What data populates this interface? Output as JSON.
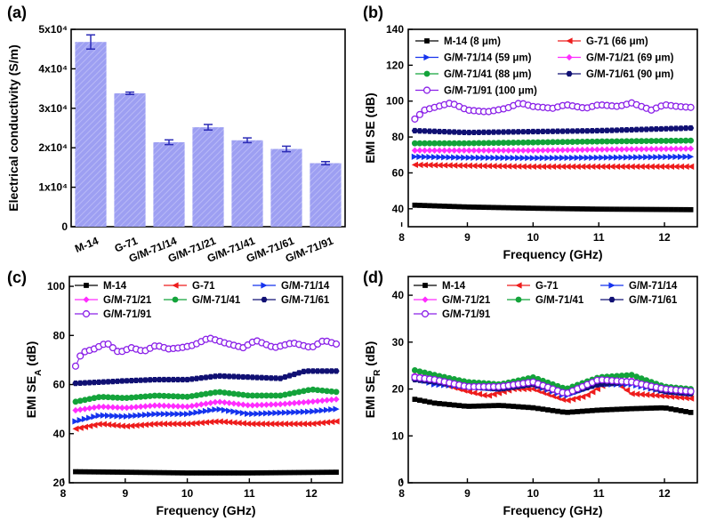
{
  "chart_data": [
    {
      "panel": "(a)",
      "type": "bar",
      "ylabel": "Electrical conductivity (S/m)",
      "categories": [
        "M-14",
        "G-71",
        "G/M-71/14",
        "G/M-71/21",
        "G/M-71/41",
        "G/M-71/61",
        "G/M-71/91"
      ],
      "values": [
        46800,
        33800,
        21400,
        25200,
        21900,
        19700,
        16100
      ],
      "errors": [
        1800,
        300,
        600,
        700,
        600,
        700,
        400
      ],
      "ylim": [
        0,
        50000
      ],
      "yticks": [
        0,
        10000,
        20000,
        30000,
        40000,
        50000
      ],
      "ytick_labels": [
        "0",
        "1x10⁴",
        "2x10⁴",
        "3x10⁴",
        "4x10⁴",
        "5x10⁴"
      ],
      "colors": {
        "bar": "#9d9ff2",
        "hatch": "#b8b9f6",
        "error": "#2b2bb6"
      }
    },
    {
      "panel": "(b)",
      "type": "line",
      "xlabel": "Frequency (GHz)",
      "ylabel": "EMI SE (dB)",
      "xlim": [
        8.1,
        12.5
      ],
      "ylim": [
        30,
        140
      ],
      "xticks": [
        8,
        9,
        10,
        11,
        12
      ],
      "yticks": [
        40,
        60,
        80,
        100,
        120,
        140
      ],
      "legend_columns": 2,
      "series": [
        {
          "name": "M-14 (8 μm)",
          "marker": "square",
          "color": "#000000",
          "points": [
            [
              8.2,
              42
            ],
            [
              9,
              41
            ],
            [
              10,
              40.3
            ],
            [
              11,
              39.8
            ],
            [
              12.4,
              39.5
            ]
          ]
        },
        {
          "name": "G-71 (66 μm)",
          "marker": "triangle-left",
          "color": "#ee1c1c",
          "points": [
            [
              8.2,
              64.5
            ],
            [
              9,
              64
            ],
            [
              10,
              63.5
            ],
            [
              11,
              63.5
            ],
            [
              12.4,
              63.5
            ]
          ]
        },
        {
          "name": "G/M-71/14 (59 μm)",
          "marker": "triangle-right",
          "color": "#1533ee",
          "points": [
            [
              8.2,
              69
            ],
            [
              9,
              68.5
            ],
            [
              10,
              68.3
            ],
            [
              11,
              68.5
            ],
            [
              12.4,
              69
            ]
          ]
        },
        {
          "name": "G/M-71/21 (69 μm)",
          "marker": "diamond",
          "color": "#ff2cff",
          "points": [
            [
              8.2,
              72.5
            ],
            [
              9,
              72.5
            ],
            [
              10,
              72.5
            ],
            [
              11,
              73
            ],
            [
              12.4,
              73.5
            ]
          ]
        },
        {
          "name": "G/M-71/41 (88 μm)",
          "marker": "circle",
          "color": "#13a33a",
          "points": [
            [
              8.2,
              76.5
            ],
            [
              9,
              76.5
            ],
            [
              10,
              77
            ],
            [
              11,
              77.5
            ],
            [
              12.4,
              78
            ]
          ]
        },
        {
          "name": "G/M-71/61 (90 μm)",
          "marker": "hexagon",
          "color": "#101073",
          "points": [
            [
              8.2,
              83.5
            ],
            [
              9,
              82.5
            ],
            [
              10,
              83
            ],
            [
              11,
              83.5
            ],
            [
              12.4,
              85
            ]
          ]
        },
        {
          "name": "G/M-71/91 (100 μm)",
          "marker": "circle-open",
          "color": "#8a20e8",
          "points": [
            [
              8.2,
              90
            ],
            [
              8.35,
              95
            ],
            [
              8.5,
              96.5
            ],
            [
              8.75,
              99
            ],
            [
              9,
              95
            ],
            [
              9.3,
              94
            ],
            [
              9.6,
              96
            ],
            [
              9.8,
              99
            ],
            [
              10.0,
              97
            ],
            [
              10.3,
              96
            ],
            [
              10.5,
              98
            ],
            [
              10.8,
              96
            ],
            [
              11.0,
              98
            ],
            [
              11.3,
              97
            ],
            [
              11.5,
              99
            ],
            [
              11.8,
              95
            ],
            [
              12.0,
              98
            ],
            [
              12.2,
              97
            ],
            [
              12.4,
              96.5
            ]
          ]
        }
      ]
    },
    {
      "panel": "(c)",
      "type": "line",
      "xlabel": "Frequency (GHz)",
      "ylabel_main": "EMI SE",
      "ylabel_sub": "A",
      "ylabel_unit": " (dB)",
      "xlim": [
        8.1,
        12.5
      ],
      "ylim": [
        20,
        104
      ],
      "xticks": [
        8,
        9,
        10,
        11,
        12
      ],
      "yticks": [
        20,
        40,
        60,
        80,
        100
      ],
      "legend_columns": 3,
      "series": [
        {
          "name": "M-14",
          "marker": "square",
          "color": "#000000",
          "points": [
            [
              8.2,
              24.5
            ],
            [
              9,
              24.3
            ],
            [
              10,
              24
            ],
            [
              11,
              24
            ],
            [
              12.4,
              24.3
            ]
          ]
        },
        {
          "name": "G-71",
          "marker": "triangle-left",
          "color": "#ee1c1c",
          "points": [
            [
              8.2,
              42
            ],
            [
              8.6,
              44
            ],
            [
              9,
              43
            ],
            [
              9.5,
              44
            ],
            [
              10,
              44
            ],
            [
              10.5,
              45
            ],
            [
              11,
              44
            ],
            [
              11.5,
              44
            ],
            [
              12,
              44
            ],
            [
              12.4,
              45
            ]
          ]
        },
        {
          "name": "G/M-71/14",
          "marker": "triangle-right",
          "color": "#1533ee",
          "points": [
            [
              8.2,
              45
            ],
            [
              8.6,
              47.5
            ],
            [
              9,
              47
            ],
            [
              9.5,
              48
            ],
            [
              10,
              48
            ],
            [
              10.5,
              50
            ],
            [
              11,
              48
            ],
            [
              11.5,
              48.5
            ],
            [
              12,
              49
            ],
            [
              12.4,
              50
            ]
          ]
        },
        {
          "name": "G/M-71/21",
          "marker": "diamond",
          "color": "#ff2cff",
          "points": [
            [
              8.2,
              49.5
            ],
            [
              8.6,
              51
            ],
            [
              9,
              50.5
            ],
            [
              9.5,
              51.5
            ],
            [
              10,
              51
            ],
            [
              10.5,
              53
            ],
            [
              11,
              51.5
            ],
            [
              11.5,
              52
            ],
            [
              12,
              53
            ],
            [
              12.4,
              54
            ]
          ]
        },
        {
          "name": "G/M-71/41",
          "marker": "circle",
          "color": "#13a33a",
          "points": [
            [
              8.2,
              53
            ],
            [
              8.6,
              55
            ],
            [
              9,
              54.5
            ],
            [
              9.5,
              55.5
            ],
            [
              10,
              55
            ],
            [
              10.5,
              57
            ],
            [
              11,
              55.5
            ],
            [
              11.5,
              55.5
            ],
            [
              12,
              58
            ],
            [
              12.4,
              57
            ]
          ]
        },
        {
          "name": "G/M-71/61",
          "marker": "hexagon",
          "color": "#101073",
          "points": [
            [
              8.2,
              60.5
            ],
            [
              8.6,
              61
            ],
            [
              9,
              61.5
            ],
            [
              9.5,
              62
            ],
            [
              10,
              62
            ],
            [
              10.5,
              63.5
            ],
            [
              11,
              63
            ],
            [
              11.5,
              62.5
            ],
            [
              11.9,
              65.5
            ],
            [
              12.4,
              65.5
            ]
          ]
        },
        {
          "name": "G/M-71/91",
          "marker": "circle-open",
          "color": "#8a20e8",
          "points": [
            [
              8.2,
              67.5
            ],
            [
              8.3,
              73
            ],
            [
              8.5,
              74.5
            ],
            [
              8.7,
              77
            ],
            [
              8.9,
              73
            ],
            [
              9.1,
              75
            ],
            [
              9.3,
              73.5
            ],
            [
              9.5,
              76
            ],
            [
              9.7,
              74.5
            ],
            [
              9.9,
              75
            ],
            [
              10.1,
              76
            ],
            [
              10.35,
              79
            ],
            [
              10.6,
              77
            ],
            [
              10.9,
              75
            ],
            [
              11.1,
              78
            ],
            [
              11.4,
              75
            ],
            [
              11.7,
              77
            ],
            [
              12.0,
              75
            ],
            [
              12.2,
              78
            ],
            [
              12.4,
              76.5
            ]
          ]
        }
      ]
    },
    {
      "panel": "(d)",
      "type": "line",
      "xlabel": "Frequency (GHz)",
      "ylabel_main": "EMI SE",
      "ylabel_sub": "R",
      "ylabel_unit": " (dB)",
      "xlim": [
        8.1,
        12.5
      ],
      "ylim": [
        0,
        44
      ],
      "xticks": [
        8,
        9,
        10,
        11,
        12
      ],
      "yticks": [
        0,
        10,
        20,
        30,
        40
      ],
      "legend_columns": 3,
      "series": [
        {
          "name": "M-14",
          "marker": "square",
          "color": "#000000",
          "points": [
            [
              8.2,
              17.8
            ],
            [
              8.5,
              17
            ],
            [
              9,
              16.3
            ],
            [
              9.5,
              16.5
            ],
            [
              10,
              16
            ],
            [
              10.5,
              15
            ],
            [
              11,
              15.5
            ],
            [
              11.5,
              15.8
            ],
            [
              12,
              16
            ],
            [
              12.4,
              15
            ]
          ]
        },
        {
          "name": "G-71",
          "marker": "triangle-left",
          "color": "#ee1c1c",
          "points": [
            [
              8.2,
              22.5
            ],
            [
              8.5,
              21.5
            ],
            [
              9,
              19.5
            ],
            [
              9.3,
              18.5
            ],
            [
              9.7,
              20
            ],
            [
              10,
              20
            ],
            [
              10.5,
              17.5
            ],
            [
              10.8,
              18.5
            ],
            [
              11.2,
              22
            ],
            [
              11.5,
              19
            ],
            [
              12,
              18.5
            ],
            [
              12.4,
              18
            ]
          ]
        },
        {
          "name": "G/M-71/14",
          "marker": "triangle-right",
          "color": "#1533ee",
          "points": [
            [
              8.2,
              22.5
            ],
            [
              8.5,
              21
            ],
            [
              9,
              20.5
            ],
            [
              9.5,
              20
            ],
            [
              10,
              21
            ],
            [
              10.5,
              18.5
            ],
            [
              11,
              21
            ],
            [
              11.5,
              21
            ],
            [
              12,
              19.5
            ],
            [
              12.4,
              19
            ]
          ]
        },
        {
          "name": "G/M-71/21",
          "marker": "diamond",
          "color": "#ff2cff",
          "points": [
            [
              8.2,
              23
            ],
            [
              8.5,
              22.5
            ],
            [
              9,
              21
            ],
            [
              9.5,
              20.5
            ],
            [
              10,
              21
            ],
            [
              10.5,
              19
            ],
            [
              11,
              21.5
            ],
            [
              11.5,
              22
            ],
            [
              12,
              20
            ],
            [
              12.4,
              19.5
            ]
          ]
        },
        {
          "name": "G/M-71/41",
          "marker": "circle",
          "color": "#13a33a",
          "points": [
            [
              8.2,
              24
            ],
            [
              8.5,
              23
            ],
            [
              9,
              21.5
            ],
            [
              9.5,
              21
            ],
            [
              10,
              22.5
            ],
            [
              10.5,
              20
            ],
            [
              11,
              22.5
            ],
            [
              11.5,
              23
            ],
            [
              12,
              20.5
            ],
            [
              12.4,
              20
            ]
          ]
        },
        {
          "name": "G/M-71/61",
          "marker": "hexagon",
          "color": "#101073",
          "points": [
            [
              8.2,
              22
            ],
            [
              8.5,
              21.5
            ],
            [
              9,
              20.5
            ],
            [
              9.5,
              20
            ],
            [
              10,
              21
            ],
            [
              10.5,
              19
            ],
            [
              11,
              21
            ],
            [
              11.5,
              21.5
            ],
            [
              12,
              19.5
            ],
            [
              12.4,
              19
            ]
          ]
        },
        {
          "name": "G/M-71/91",
          "marker": "circle-open",
          "color": "#8a20e8",
          "points": [
            [
              8.2,
              22.5
            ],
            [
              8.5,
              22
            ],
            [
              9,
              20.5
            ],
            [
              9.5,
              20.5
            ],
            [
              10,
              21.5
            ],
            [
              10.5,
              19
            ],
            [
              11,
              22
            ],
            [
              11.5,
              21.5
            ],
            [
              12,
              20
            ],
            [
              12.4,
              19.5
            ]
          ]
        }
      ]
    }
  ]
}
